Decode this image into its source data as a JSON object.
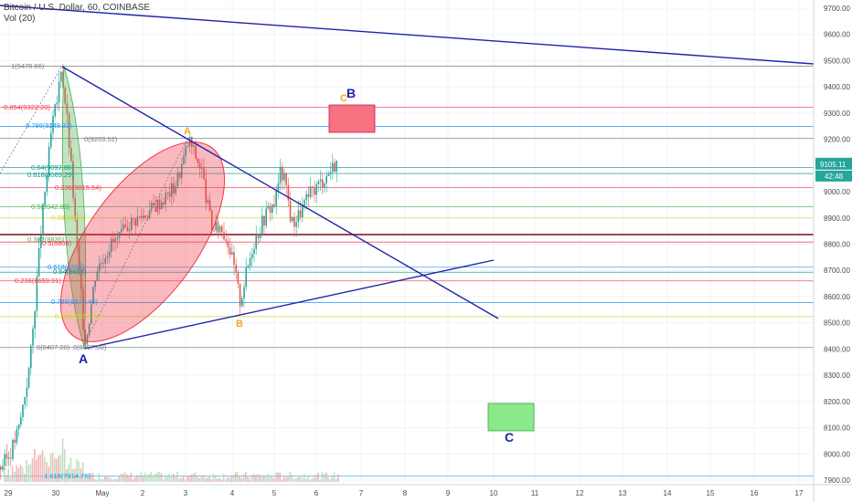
{
  "legend": {
    "symbol": "Bitcoin / U.S. Dollar, 60, COINBASE",
    "volume": "Vol (20)"
  },
  "price_axis": {
    "ticks": [
      "9700.00",
      "9600.00",
      "9500.00",
      "9400.00",
      "9300.00",
      "9200.00",
      "9000.00",
      "8900.00",
      "8800.00",
      "8700.00",
      "8600.00",
      "8500.00",
      "8400.00",
      "8300.00",
      "8200.00",
      "8100.00",
      "8000.00",
      "7900.00"
    ],
    "last_price": "9105.11",
    "countdown": "42:48",
    "last_price_color": "#26a69a"
  },
  "time_axis": {
    "ticks": [
      "29",
      "30",
      "May",
      "2",
      "3",
      "4",
      "5",
      "6",
      "7",
      "8",
      "9",
      "10",
      "11",
      "12",
      "13",
      "14",
      "15",
      "16",
      "17"
    ]
  },
  "fib_levels": [
    {
      "label": "1(9478.66)",
      "price": 9478.66,
      "color": "#787b86"
    },
    {
      "label": "0.854(9322.20)",
      "price": 9322.2,
      "color": "#f23645"
    },
    {
      "label": "0.786(9249.33)",
      "price": 9249.33,
      "color": "#2196f3"
    },
    {
      "label": "0(9203.52)",
      "price": 9203.52,
      "color": "#787b86"
    },
    {
      "label": "0.64(9092.86)",
      "price": 9092.86,
      "color": "#009688"
    },
    {
      "label": "0.618(9069.29)",
      "price": 9069.29,
      "color": "#009688"
    },
    {
      "label": "0.236(9015.54)",
      "price": 9015.54,
      "color": "#f23645"
    },
    {
      "label": "0.5(8942.83)",
      "price": 8942.83,
      "color": "#4caf50"
    },
    {
      "label": "0.38(8900)",
      "price": 8900,
      "color": "#cddc39"
    },
    {
      "label": "0.382(8835)",
      "price": 8835,
      "color": "#4caf50"
    },
    {
      "label": "0.5(8808)",
      "price": 8808,
      "color": "#f23645"
    },
    {
      "label": "0.618(8712)",
      "price": 8712,
      "color": "#2196f3"
    },
    {
      "label": "0.64(8693)",
      "price": 8693,
      "color": "#009688"
    },
    {
      "label": "0.236(8659.91)",
      "price": 8659.91,
      "color": "#f23645"
    },
    {
      "label": "0.786(8577.40)",
      "price": 8577.4,
      "color": "#2196f3"
    },
    {
      "label": "0.854(8523.85)",
      "price": 8523.85,
      "color": "#cddc39"
    },
    {
      "label": "0(8407.00)",
      "price": 8407,
      "color": "#787b86"
    },
    {
      "label": "1.618(7914.75)",
      "price": 7914.75,
      "color": "#2196f3"
    }
  ],
  "extra_line_label": "0(8407.00)",
  "annotations": {
    "point_a_low": "A",
    "point_a_high": "A",
    "point_b_orange": "B",
    "point_b_blue": "B",
    "point_c_orange": "C",
    "point_c_blue": "C"
  },
  "colors": {
    "trendline": "#1e22aa",
    "ellipse_fill": "#f23645",
    "green_fill": "#4caf50",
    "red_box": "#f7727f",
    "green_box": "#8be98a",
    "up_candle": "#26a69a",
    "down_candle": "#ef5350",
    "orange_label": "#f6a623",
    "blue_label": "#1e22aa"
  },
  "chart_data": {
    "type": "candlestick",
    "y_range": [
      7880,
      9740
    ],
    "approx_path": [
      [
        0,
        7950
      ],
      [
        10,
        8000
      ],
      [
        20,
        8100
      ],
      [
        30,
        8300
      ],
      [
        34,
        8420
      ],
      [
        38,
        8600
      ],
      [
        44,
        8850
      ],
      [
        50,
        9050
      ],
      [
        56,
        9250
      ],
      [
        62,
        9350
      ],
      [
        66,
        9478
      ],
      [
        72,
        9300
      ],
      [
        78,
        9050
      ],
      [
        82,
        8850
      ],
      [
        88,
        8600
      ],
      [
        92,
        8420
      ],
      [
        96,
        8500
      ],
      [
        104,
        8700
      ],
      [
        112,
        8750
      ],
      [
        120,
        8800
      ],
      [
        130,
        8820
      ],
      [
        140,
        8880
      ],
      [
        150,
        8900
      ],
      [
        160,
        8920
      ],
      [
        170,
        8950
      ],
      [
        180,
        8980
      ],
      [
        190,
        9020
      ],
      [
        198,
        9100
      ],
      [
        206,
        9200
      ],
      [
        214,
        9130
      ],
      [
        220,
        9080
      ],
      [
        226,
        8950
      ],
      [
        232,
        8850
      ],
      [
        240,
        8870
      ],
      [
        248,
        8820
      ],
      [
        256,
        8700
      ],
      [
        262,
        8580
      ],
      [
        268,
        8680
      ],
      [
        276,
        8800
      ],
      [
        284,
        8870
      ],
      [
        292,
        8930
      ],
      [
        300,
        8960
      ],
      [
        306,
        9080
      ],
      [
        312,
        9030
      ],
      [
        318,
        8880
      ],
      [
        324,
        8900
      ],
      [
        332,
        8950
      ],
      [
        340,
        9000
      ],
      [
        348,
        9030
      ],
      [
        356,
        9060
      ],
      [
        364,
        9100
      ],
      [
        368,
        9120
      ]
    ]
  }
}
